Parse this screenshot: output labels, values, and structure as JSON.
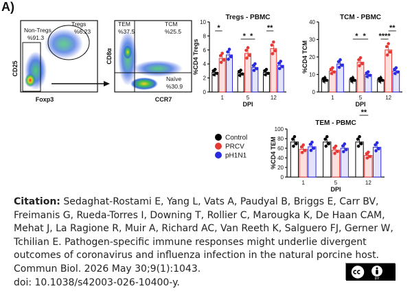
{
  "figure": {
    "panel_label": "A)",
    "flow1": {
      "y_axis": "CD25",
      "x_axis": "Foxp3",
      "gate_left_name": "Non-Tregs",
      "gate_left_value": "%91.3",
      "gate_right_name": "Tregs",
      "gate_right_value": "%6.23"
    },
    "flow2": {
      "y_axis": "CD8α",
      "x_axis": "CCR7",
      "q1_name": "TEM",
      "q1_value": "%37.5",
      "q2_name": "TCM",
      "q2_value": "%25.5",
      "q3_name": "Naïve",
      "q3_value": "%30.9"
    },
    "legend": [
      {
        "label": "Control",
        "color": "#000000"
      },
      {
        "label": "PRCV",
        "color": "#e53935"
      },
      {
        "label": "pH1N1",
        "color": "#2a2ae0"
      }
    ]
  },
  "chart_data": [
    {
      "type": "bar",
      "title": "Tregs - PBMC",
      "ylabel": "%CD4 Tregs",
      "xlabel": "DPI",
      "categories": [
        "1",
        "5",
        "12"
      ],
      "ylim": [
        0,
        10
      ],
      "yticks": [
        "0",
        "2",
        "4",
        "6",
        "8",
        "10"
      ],
      "series": [
        {
          "name": "Control",
          "values": [
            2.8,
            2.7,
            2.8
          ]
        },
        {
          "name": "PRCV",
          "values": [
            4.8,
            5.5,
            6.2
          ]
        },
        {
          "name": "pH1N1",
          "values": [
            5.3,
            3.5,
            3.8
          ]
        }
      ],
      "significance": [
        "*",
        "*",
        "*",
        "**"
      ]
    },
    {
      "type": "bar",
      "title": "TCM - PBMC",
      "ylabel": "%CD4 TCM",
      "xlabel": "DPI",
      "categories": [
        "1",
        "5",
        "12"
      ],
      "ylim": [
        0,
        40
      ],
      "yticks": [
        "0",
        "10",
        "20",
        "30",
        "40"
      ],
      "series": [
        {
          "name": "Control",
          "values": [
            7,
            7,
            7
          ]
        },
        {
          "name": "PRCV",
          "values": [
            12,
            17,
            24
          ]
        },
        {
          "name": "pH1N1",
          "values": [
            16,
            10,
            12
          ]
        }
      ],
      "significance": [
        "*",
        "*",
        "****",
        "**"
      ]
    },
    {
      "type": "bar",
      "title": "TEM - PBMC",
      "ylabel": "%CD4 TEM",
      "xlabel": "DPI",
      "categories": [
        "1",
        "5",
        "12"
      ],
      "ylim": [
        0,
        100
      ],
      "yticks": [
        "0",
        "20",
        "40",
        "60",
        "80",
        "100"
      ],
      "series": [
        {
          "name": "Control",
          "values": [
            73,
            73,
            73
          ]
        },
        {
          "name": "PRCV",
          "values": [
            58,
            56,
            45
          ]
        },
        {
          "name": "pH1N1",
          "values": [
            63,
            60,
            62
          ]
        }
      ],
      "significance": [
        "**"
      ]
    }
  ],
  "citation": {
    "label": "Citation:",
    "text": "Sedaghat-Rostami E, Yang L, Vats A, Paudyal B, Briggs E, Carr BV, Freimanis G, Rueda-Torres I, Downing T, Rollier C, Marougka K, De Haan CAM, Mehat J, La Ragione R, Muir A, Richard AC, Van Reeth K, Salguero FJ, Gerner W, Tchilian E. Pathogen-specific immune responses might underlie divergent outcomes of coronavirus and influenza infection in the natural porcine host.",
    "journal": "Commun Biol. 2026 May 30;9(1):1043.",
    "doi": "doi: 10.1038/s42003-026-10400-y."
  },
  "license_badge": {
    "icons": [
      "cc-icon",
      "attribution-icon"
    ],
    "text": "BY"
  }
}
